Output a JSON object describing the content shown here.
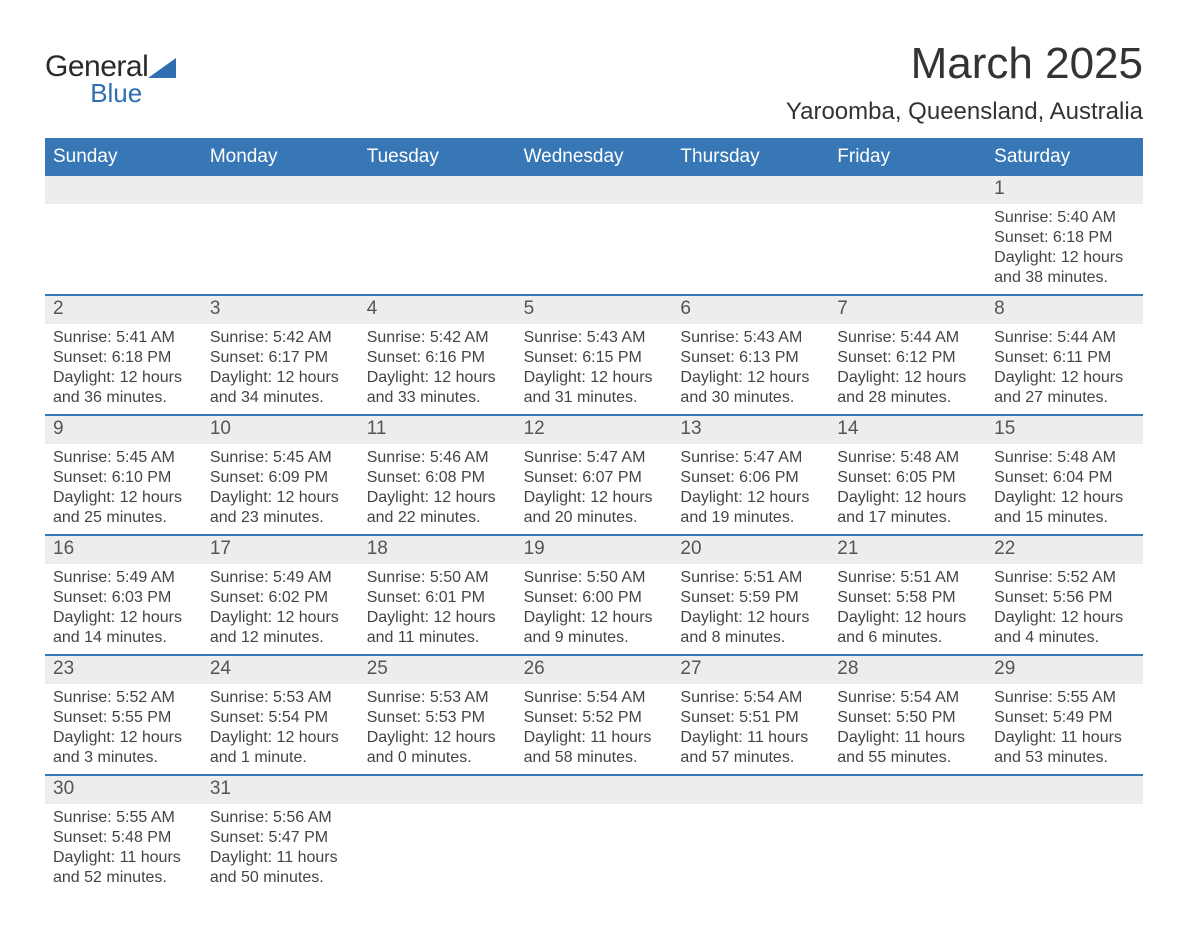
{
  "logo": {
    "line1": "General",
    "line2": "Blue"
  },
  "header": {
    "title": "March 2025",
    "location": "Yaroomba, Queensland, Australia"
  },
  "colors": {
    "header_bg": "#3777b5",
    "header_text": "#ffffff",
    "band_bg": "#ededed",
    "band_border": "#3777b5",
    "text": "#333333",
    "logo_blue": "#2f6fb1"
  },
  "dow": [
    "Sunday",
    "Monday",
    "Tuesday",
    "Wednesday",
    "Thursday",
    "Friday",
    "Saturday"
  ],
  "weeks": [
    [
      null,
      null,
      null,
      null,
      null,
      null,
      {
        "n": "1",
        "sunrise": "Sunrise: 5:40 AM",
        "sunset": "Sunset: 6:18 PM",
        "daylight": "Daylight: 12 hours and 38 minutes."
      }
    ],
    [
      {
        "n": "2",
        "sunrise": "Sunrise: 5:41 AM",
        "sunset": "Sunset: 6:18 PM",
        "daylight": "Daylight: 12 hours and 36 minutes."
      },
      {
        "n": "3",
        "sunrise": "Sunrise: 5:42 AM",
        "sunset": "Sunset: 6:17 PM",
        "daylight": "Daylight: 12 hours and 34 minutes."
      },
      {
        "n": "4",
        "sunrise": "Sunrise: 5:42 AM",
        "sunset": "Sunset: 6:16 PM",
        "daylight": "Daylight: 12 hours and 33 minutes."
      },
      {
        "n": "5",
        "sunrise": "Sunrise: 5:43 AM",
        "sunset": "Sunset: 6:15 PM",
        "daylight": "Daylight: 12 hours and 31 minutes."
      },
      {
        "n": "6",
        "sunrise": "Sunrise: 5:43 AM",
        "sunset": "Sunset: 6:13 PM",
        "daylight": "Daylight: 12 hours and 30 minutes."
      },
      {
        "n": "7",
        "sunrise": "Sunrise: 5:44 AM",
        "sunset": "Sunset: 6:12 PM",
        "daylight": "Daylight: 12 hours and 28 minutes."
      },
      {
        "n": "8",
        "sunrise": "Sunrise: 5:44 AM",
        "sunset": "Sunset: 6:11 PM",
        "daylight": "Daylight: 12 hours and 27 minutes."
      }
    ],
    [
      {
        "n": "9",
        "sunrise": "Sunrise: 5:45 AM",
        "sunset": "Sunset: 6:10 PM",
        "daylight": "Daylight: 12 hours and 25 minutes."
      },
      {
        "n": "10",
        "sunrise": "Sunrise: 5:45 AM",
        "sunset": "Sunset: 6:09 PM",
        "daylight": "Daylight: 12 hours and 23 minutes."
      },
      {
        "n": "11",
        "sunrise": "Sunrise: 5:46 AM",
        "sunset": "Sunset: 6:08 PM",
        "daylight": "Daylight: 12 hours and 22 minutes."
      },
      {
        "n": "12",
        "sunrise": "Sunrise: 5:47 AM",
        "sunset": "Sunset: 6:07 PM",
        "daylight": "Daylight: 12 hours and 20 minutes."
      },
      {
        "n": "13",
        "sunrise": "Sunrise: 5:47 AM",
        "sunset": "Sunset: 6:06 PM",
        "daylight": "Daylight: 12 hours and 19 minutes."
      },
      {
        "n": "14",
        "sunrise": "Sunrise: 5:48 AM",
        "sunset": "Sunset: 6:05 PM",
        "daylight": "Daylight: 12 hours and 17 minutes."
      },
      {
        "n": "15",
        "sunrise": "Sunrise: 5:48 AM",
        "sunset": "Sunset: 6:04 PM",
        "daylight": "Daylight: 12 hours and 15 minutes."
      }
    ],
    [
      {
        "n": "16",
        "sunrise": "Sunrise: 5:49 AM",
        "sunset": "Sunset: 6:03 PM",
        "daylight": "Daylight: 12 hours and 14 minutes."
      },
      {
        "n": "17",
        "sunrise": "Sunrise: 5:49 AM",
        "sunset": "Sunset: 6:02 PM",
        "daylight": "Daylight: 12 hours and 12 minutes."
      },
      {
        "n": "18",
        "sunrise": "Sunrise: 5:50 AM",
        "sunset": "Sunset: 6:01 PM",
        "daylight": "Daylight: 12 hours and 11 minutes."
      },
      {
        "n": "19",
        "sunrise": "Sunrise: 5:50 AM",
        "sunset": "Sunset: 6:00 PM",
        "daylight": "Daylight: 12 hours and 9 minutes."
      },
      {
        "n": "20",
        "sunrise": "Sunrise: 5:51 AM",
        "sunset": "Sunset: 5:59 PM",
        "daylight": "Daylight: 12 hours and 8 minutes."
      },
      {
        "n": "21",
        "sunrise": "Sunrise: 5:51 AM",
        "sunset": "Sunset: 5:58 PM",
        "daylight": "Daylight: 12 hours and 6 minutes."
      },
      {
        "n": "22",
        "sunrise": "Sunrise: 5:52 AM",
        "sunset": "Sunset: 5:56 PM",
        "daylight": "Daylight: 12 hours and 4 minutes."
      }
    ],
    [
      {
        "n": "23",
        "sunrise": "Sunrise: 5:52 AM",
        "sunset": "Sunset: 5:55 PM",
        "daylight": "Daylight: 12 hours and 3 minutes."
      },
      {
        "n": "24",
        "sunrise": "Sunrise: 5:53 AM",
        "sunset": "Sunset: 5:54 PM",
        "daylight": "Daylight: 12 hours and 1 minute."
      },
      {
        "n": "25",
        "sunrise": "Sunrise: 5:53 AM",
        "sunset": "Sunset: 5:53 PM",
        "daylight": "Daylight: 12 hours and 0 minutes."
      },
      {
        "n": "26",
        "sunrise": "Sunrise: 5:54 AM",
        "sunset": "Sunset: 5:52 PM",
        "daylight": "Daylight: 11 hours and 58 minutes."
      },
      {
        "n": "27",
        "sunrise": "Sunrise: 5:54 AM",
        "sunset": "Sunset: 5:51 PM",
        "daylight": "Daylight: 11 hours and 57 minutes."
      },
      {
        "n": "28",
        "sunrise": "Sunrise: 5:54 AM",
        "sunset": "Sunset: 5:50 PM",
        "daylight": "Daylight: 11 hours and 55 minutes."
      },
      {
        "n": "29",
        "sunrise": "Sunrise: 5:55 AM",
        "sunset": "Sunset: 5:49 PM",
        "daylight": "Daylight: 11 hours and 53 minutes."
      }
    ],
    [
      {
        "n": "30",
        "sunrise": "Sunrise: 5:55 AM",
        "sunset": "Sunset: 5:48 PM",
        "daylight": "Daylight: 11 hours and 52 minutes."
      },
      {
        "n": "31",
        "sunrise": "Sunrise: 5:56 AM",
        "sunset": "Sunset: 5:47 PM",
        "daylight": "Daylight: 11 hours and 50 minutes."
      },
      null,
      null,
      null,
      null,
      null
    ]
  ]
}
